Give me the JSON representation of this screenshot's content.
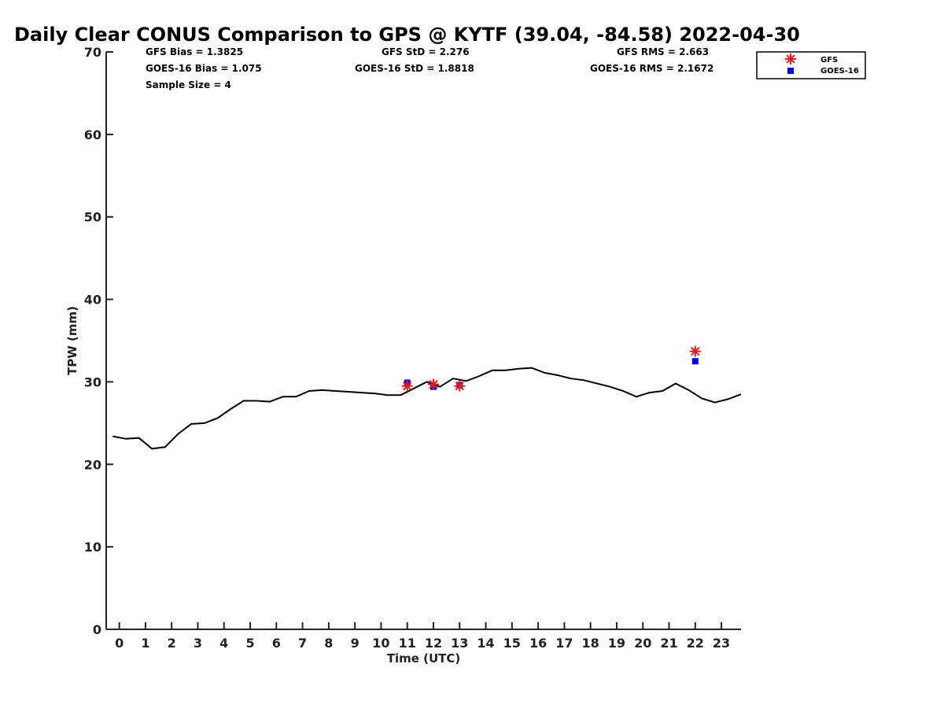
{
  "chart_data": {
    "type": "scatter",
    "title": "Daily Clear CONUS Comparison to GPS @ KYTF (39.04, -84.58) 2022-04-30",
    "xlabel": "Time (UTC)",
    "ylabel": "TPW (mm)",
    "xlim": [
      -0.5,
      23.75
    ],
    "ylim": [
      0,
      70
    ],
    "x_ticks": [
      "0",
      "1",
      "2",
      "3",
      "4",
      "5",
      "6",
      "7",
      "8",
      "9",
      "10",
      "11",
      "12",
      "13",
      "14",
      "15",
      "16",
      "17",
      "18",
      "19",
      "20",
      "21",
      "22",
      "23"
    ],
    "y_ticks": [
      "0",
      "10",
      "20",
      "30",
      "40",
      "50",
      "60",
      "70"
    ],
    "grid": false,
    "legend_position": "top-right, outside plot",
    "stats": {
      "gfs_bias": "GFS Bias = 1.3825",
      "goes_bias": "GOES-16 Bias = 1.075",
      "sample_size": "Sample Size = 4",
      "gfs_std": "GFS StD = 2.276",
      "goes_std": "GOES-16 StD = 1.8818",
      "gfs_rms": "GFS RMS = 2.663",
      "goes_rms": "GOES-16 RMS = 2.1672"
    },
    "gps_line": {
      "color": "#000000",
      "x": [
        -0.25,
        0.25,
        0.75,
        1.25,
        1.75,
        2.25,
        2.75,
        3.25,
        3.75,
        4.25,
        4.75,
        5.25,
        5.75,
        6.25,
        6.75,
        7.25,
        7.75,
        8.25,
        8.75,
        9.25,
        9.75,
        10.25,
        10.75,
        11.25,
        11.75,
        12.25,
        12.75,
        13.25,
        13.75,
        14.25,
        14.75,
        15.25,
        15.75,
        16.25,
        16.75,
        17.25,
        17.75,
        18.25,
        18.75,
        19.25,
        19.75,
        20.25,
        20.75,
        21.25,
        21.75,
        22.25,
        22.75,
        23.25,
        23.75
      ],
      "y": [
        23.4,
        23.1,
        23.2,
        21.9,
        22.1,
        23.7,
        24.9,
        25.0,
        25.6,
        26.7,
        27.7,
        27.7,
        27.6,
        28.2,
        28.2,
        28.9,
        29.0,
        28.9,
        28.8,
        28.7,
        28.6,
        28.4,
        28.4,
        29.2,
        30.0,
        29.4,
        30.4,
        30.1,
        30.7,
        31.4,
        31.4,
        31.6,
        31.7,
        31.1,
        30.8,
        30.4,
        30.2,
        29.8,
        29.4,
        28.9,
        28.2,
        28.7,
        28.9,
        29.8,
        29.0,
        28.0,
        27.5,
        27.9,
        28.5
      ]
    },
    "series": [
      {
        "name": "GFS",
        "color": "#e41a1c",
        "marker": "asterisk",
        "x": [
          11.0,
          12.0,
          13.0,
          22.0
        ],
        "y": [
          29.5,
          29.7,
          29.5,
          33.7
        ]
      },
      {
        "name": "GOES-16",
        "color": "#0000ff",
        "marker": "square",
        "x": [
          11.0,
          12.0,
          13.0,
          22.0
        ],
        "y": [
          29.9,
          29.4,
          29.6,
          32.5
        ]
      }
    ]
  }
}
